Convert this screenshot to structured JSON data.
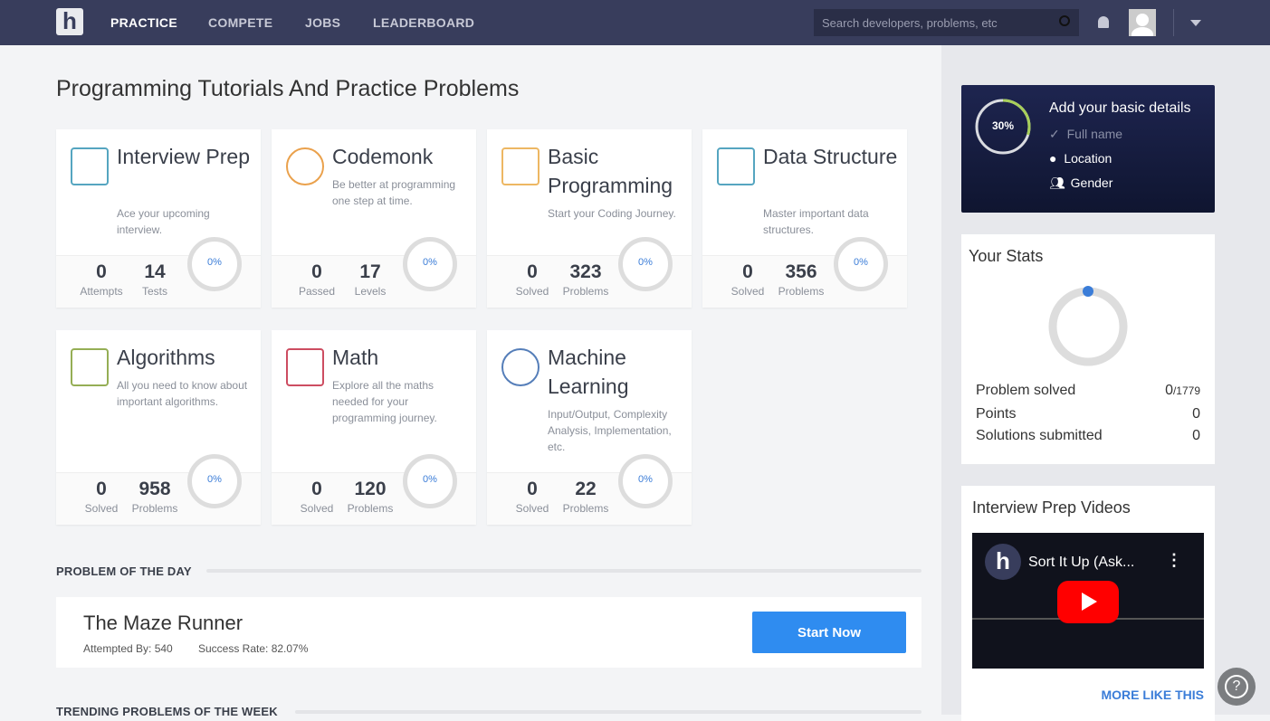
{
  "header": {
    "logo": "h",
    "nav": [
      "PRACTICE",
      "COMPETE",
      "JOBS",
      "LEADERBOARD"
    ],
    "active": "PRACTICE",
    "search_placeholder": "Search developers, problems, etc"
  },
  "page_title": "Programming Tutorials And Practice Problems",
  "cards": [
    {
      "title": "Interview Prep",
      "desc": "Ace your upcoming interview.",
      "s1": "0",
      "l1": "Attempts",
      "s2": "14",
      "l2": "Tests",
      "pct": "0%",
      "icon": "interview-icon"
    },
    {
      "title": "Codemonk",
      "desc": "Be better at programming one step at time.",
      "s1": "0",
      "l1": "Passed",
      "s2": "17",
      "l2": "Levels",
      "pct": "0%",
      "icon": "monkey-icon"
    },
    {
      "title": "Basic Programming",
      "desc": "Start your Coding Journey.",
      "s1": "0",
      "l1": "Solved",
      "s2": "323",
      "l2": "Problems",
      "pct": "0%",
      "icon": "cubes-icon"
    },
    {
      "title": "Data Structure",
      "desc": "Master important data structures.",
      "s1": "0",
      "l1": "Solved",
      "s2": "356",
      "l2": "Problems",
      "pct": "0%",
      "icon": "tree-icon"
    },
    {
      "title": "Algorithms",
      "desc": "All you need to know about important algorithms.",
      "s1": "0",
      "l1": "Solved",
      "s2": "958",
      "l2": "Problems",
      "pct": "0%",
      "icon": "grid-icon"
    },
    {
      "title": "Math",
      "desc": "Explore all the maths needed for your programming journey.",
      "s1": "0",
      "l1": "Solved",
      "s2": "120",
      "l2": "Problems",
      "pct": "0%",
      "icon": "math-icon"
    },
    {
      "title": "Machine Learning",
      "desc": "Input/Output, Complexity Analysis, Implementation, etc.",
      "s1": "0",
      "l1": "Solved",
      "s2": "22",
      "l2": "Problems",
      "pct": "0%",
      "icon": "mesh-icon"
    }
  ],
  "potd": {
    "heading": "PROBLEM OF THE DAY",
    "title": "The Maze Runner",
    "attempted": "Attempted By: 540",
    "success": "Success Rate: 82.07%",
    "button": "Start Now"
  },
  "trending_heading": "TRENDING PROBLEMS OF THE WEEK",
  "profile": {
    "percent": "30%",
    "percent_value": 30,
    "title": "Add your basic details",
    "items": [
      "Full name",
      "Location",
      "Gender"
    ]
  },
  "stats": {
    "title": "Your Stats",
    "rows": [
      {
        "label": "Problem solved",
        "value": "0",
        "total": "/1779"
      },
      {
        "label": "Points",
        "value": "0"
      },
      {
        "label": "Solutions submitted",
        "value": "0"
      }
    ]
  },
  "videos": {
    "title": "Interview Prep Videos",
    "video_title": "Sort It Up (Ask...",
    "more": "MORE LIKE THIS"
  },
  "colors": {
    "header": "#383d5c",
    "accent": "#2f8cf0",
    "progress": "#a8cf5a"
  }
}
